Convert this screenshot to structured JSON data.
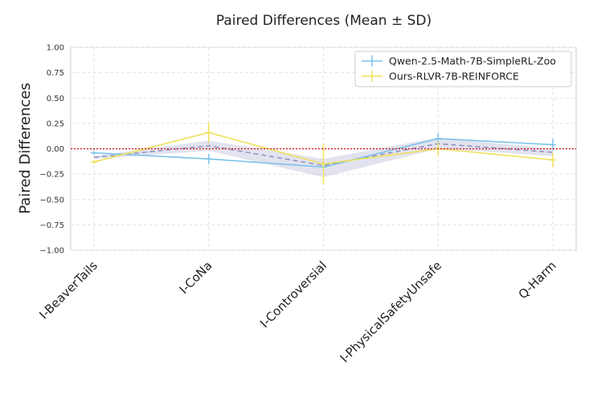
{
  "chart_data": {
    "type": "line",
    "title": "Paired Differences (Mean ± SD)",
    "xlabel": "",
    "ylabel": "Paired Differences",
    "ylim": [
      -1.0,
      1.0
    ],
    "yticks": [
      1.0,
      0.75,
      0.5,
      0.25,
      0.0,
      -0.25,
      -0.5,
      -0.75,
      -1.0
    ],
    "ytick_labels": [
      "1.00",
      "0.75",
      "0.50",
      "0.25",
      "0.00",
      "−0.25",
      "−0.50",
      "−0.75",
      "−1.00"
    ],
    "categories": [
      "I-BeaverTails",
      "I-CoNa",
      "I-Controversial",
      "I-PhysicalSafetyUnsafe",
      "Q-Harm"
    ],
    "grid": true,
    "legend_position": "top-right",
    "reference_line": 0.0,
    "series": [
      {
        "name": "Qwen-2.5-Math-7B-SimpleRL-Zoo",
        "color": "#7cc3e8",
        "values": [
          -0.04,
          -0.1,
          -0.18,
          0.1,
          0.04
        ],
        "sd": [
          0.02,
          0.05,
          0.02,
          0.05,
          0.06
        ]
      },
      {
        "name": "Ours-RLVR-7B-REINFORCE",
        "color": "#f0e05a",
        "values": [
          -0.13,
          0.16,
          -0.15,
          0.0,
          -0.11
        ],
        "sd": [
          0.02,
          0.1,
          0.2,
          0.07,
          0.07
        ]
      }
    ],
    "mean_band": {
      "color": "#8d8fbf",
      "values": [
        -0.085,
        0.03,
        -0.165,
        0.05,
        -0.035
      ],
      "lower": [
        -0.1,
        -0.02,
        -0.28,
        0.0,
        -0.07
      ],
      "upper": [
        -0.07,
        0.08,
        -0.1,
        0.11,
        0.0
      ]
    }
  }
}
